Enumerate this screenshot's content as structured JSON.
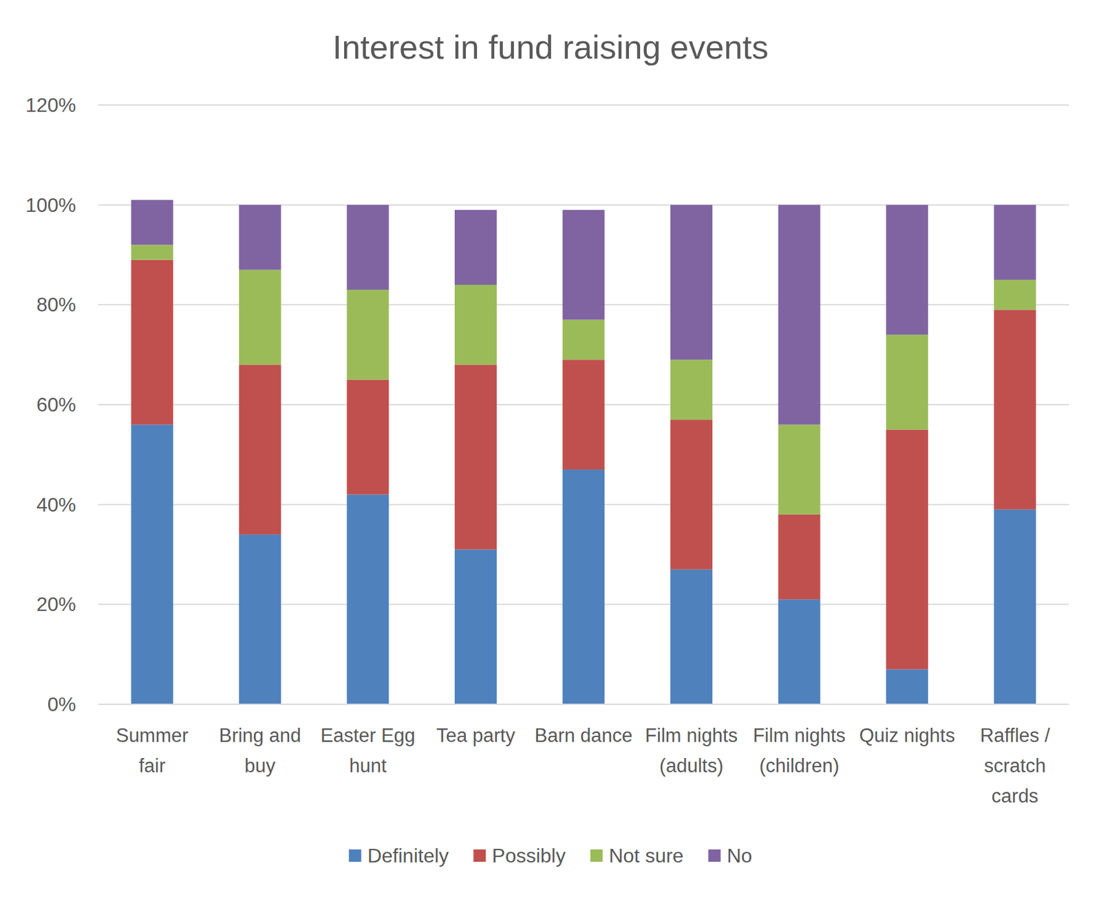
{
  "chart_data": {
    "type": "bar",
    "title": "Interest in fund raising events",
    "categories": [
      "Summer fair",
      "Bring and buy",
      "Easter Egg hunt",
      "Tea party",
      "Barn dance",
      "Film nights (adults)",
      "Film nights (children)",
      "Quiz nights",
      "Raffles / scratch cards"
    ],
    "series": [
      {
        "name": "Definitely",
        "color": "#4f81bd",
        "values": [
          56,
          34,
          42,
          31,
          47,
          27,
          21,
          7,
          39
        ]
      },
      {
        "name": "Possibly",
        "color": "#c0504d",
        "values": [
          33,
          34,
          23,
          37,
          22,
          30,
          17,
          48,
          40
        ]
      },
      {
        "name": "Not sure",
        "color": "#9bbb59",
        "values": [
          3,
          19,
          18,
          16,
          8,
          12,
          18,
          19,
          6
        ]
      },
      {
        "name": "No",
        "color": "#8064a2",
        "values": [
          9,
          13,
          17,
          15,
          22,
          31,
          44,
          26,
          15
        ]
      }
    ],
    "stacked": true,
    "ylim": [
      0,
      120
    ],
    "yticks": [
      {
        "value": 0,
        "label": "0%"
      },
      {
        "value": 20,
        "label": "20%"
      },
      {
        "value": 40,
        "label": "40%"
      },
      {
        "value": 60,
        "label": "60%"
      },
      {
        "value": 80,
        "label": "80%"
      },
      {
        "value": 100,
        "label": "100%"
      },
      {
        "value": 120,
        "label": "120%"
      }
    ],
    "grid": true,
    "legend": "bottom"
  }
}
